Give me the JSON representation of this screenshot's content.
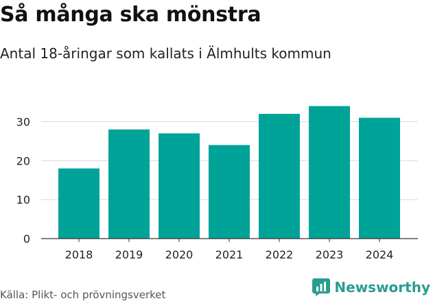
{
  "header": {
    "title": "Så många ska mönstra",
    "subtitle": "Antal 18-åringar som kallats i Älmhults kommun"
  },
  "footer": {
    "source": "Källa: Plikt- och prövningsverket",
    "brand": "Newsworthy",
    "brand_icon": "bar-chart-logo-icon"
  },
  "colors": {
    "bar": "#00a398",
    "grid": "#d9d9d9",
    "brand": "#2a9d8f"
  },
  "chart_data": {
    "type": "bar",
    "title": "Så många ska mönstra",
    "subtitle": "Antal 18-åringar som kallats i Älmhults kommun",
    "categories": [
      "2018",
      "2019",
      "2020",
      "2021",
      "2022",
      "2023",
      "2024"
    ],
    "values": [
      18,
      28,
      27,
      24,
      32,
      34,
      31
    ],
    "ylim": [
      0,
      35
    ],
    "yticks": [
      0,
      10,
      20,
      30
    ],
    "xlabel": "",
    "ylabel": "",
    "grid": true
  }
}
